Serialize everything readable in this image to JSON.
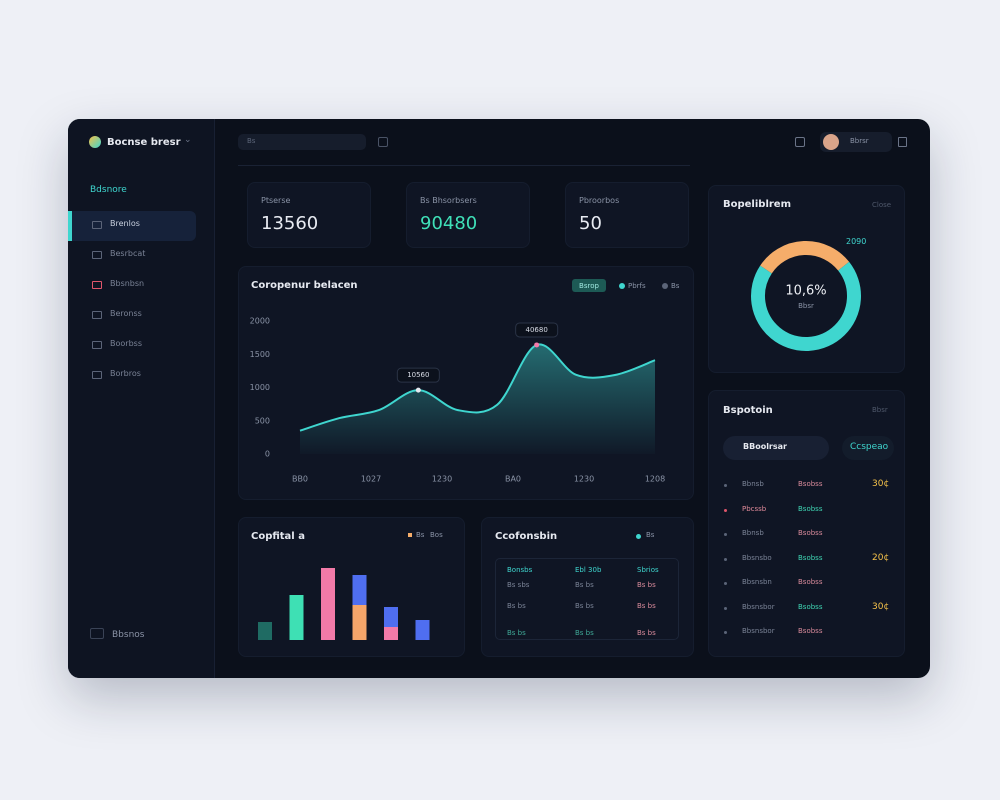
{
  "brand": "Bocnse bresr",
  "sidebar": {
    "section": "Bdsnore",
    "items": [
      "Brenlos",
      "Besrbcat",
      "Bbsnbsn",
      "Beronss",
      "Boorbss",
      "Borbros"
    ],
    "footer": "Bbsnos"
  },
  "header": {
    "search": "Bs",
    "user": "Bbrsr"
  },
  "kpis": [
    {
      "label": "Ptserse",
      "value": "13560"
    },
    {
      "label": "Bs Bhsorbsers",
      "value": "90480"
    },
    {
      "label": "Pbroorbos",
      "value": "50"
    }
  ],
  "area_chart": {
    "type": "area",
    "title": "Coropenur belacen",
    "legend": [
      "Bsrop",
      "Pbrfs",
      "Bs"
    ],
    "color": "#3fd6cf",
    "ylim": [
      0,
      2000
    ],
    "yticks": [
      0,
      500,
      1000,
      1500,
      2000
    ],
    "x_labels": [
      "BB0",
      "1027",
      "1230",
      "BA0",
      "1230",
      "1208"
    ],
    "values": [
      350,
      540,
      660,
      960,
      660,
      740,
      1640,
      1190,
      1190,
      1410
    ],
    "annotations": [
      {
        "index": 3,
        "label": "10560"
      },
      {
        "index": 6,
        "label": "40680"
      }
    ]
  },
  "bar_chart": {
    "type": "bar",
    "title": "Copfital a",
    "legend": [
      "Bs",
      "Bos"
    ],
    "ylim": [
      0,
      80
    ],
    "series": [
      {
        "colors": [
          "#1f6b63",
          "#3ee0b4",
          "#f27aa8",
          "#f5a56a",
          "#f27aa8",
          "#4f6ef0"
        ],
        "values": [
          18,
          45,
          72,
          35,
          13,
          20
        ]
      },
      {
        "color": "#4f6ef0",
        "values": [
          0,
          0,
          0,
          30,
          20,
          0
        ]
      }
    ]
  },
  "donut": {
    "type": "pie",
    "title": "Bopeliblrem",
    "action": "Close",
    "center": "10,6%",
    "sub": "Bbsr",
    "tag": "2090",
    "values": [
      70,
      30
    ],
    "colors": [
      "#3fd6cf",
      "#f5ad6a"
    ]
  },
  "table": {
    "title": "Ccofonsbin",
    "legend": "Bs",
    "header": [
      "Bonsbs",
      "Ebl 30b",
      "Sbrios"
    ],
    "rows": [
      [
        "Bs sbs",
        "Bs bs",
        "Bs bs"
      ],
      [
        "Bs bs",
        "Bs bs",
        "Bs bs"
      ],
      [
        "Bs bs",
        "Bs bs",
        "Bs bs"
      ]
    ]
  },
  "list": {
    "title": "Bspotoin",
    "action": "Bbsr",
    "button": "BBoolrsar",
    "tag": "Ccspeao",
    "rows": [
      {
        "label": "Bbnsb",
        "value": "Bsobss",
        "amount": "30¢"
      },
      {
        "label": "Pbcssb",
        "value": "Bsobss"
      },
      {
        "label": "Bbnsb",
        "value": "Bsobss"
      },
      {
        "label": "Bbsnsbo",
        "value": "Bsobss",
        "amount": "20¢"
      },
      {
        "label": "Bbsnsbn",
        "value": "Bsobss"
      },
      {
        "label": "Bbsnsbor",
        "value": "Bsobss",
        "amount": "30¢"
      },
      {
        "label": "Bbsnsbor",
        "value": "Bsobss"
      }
    ]
  }
}
